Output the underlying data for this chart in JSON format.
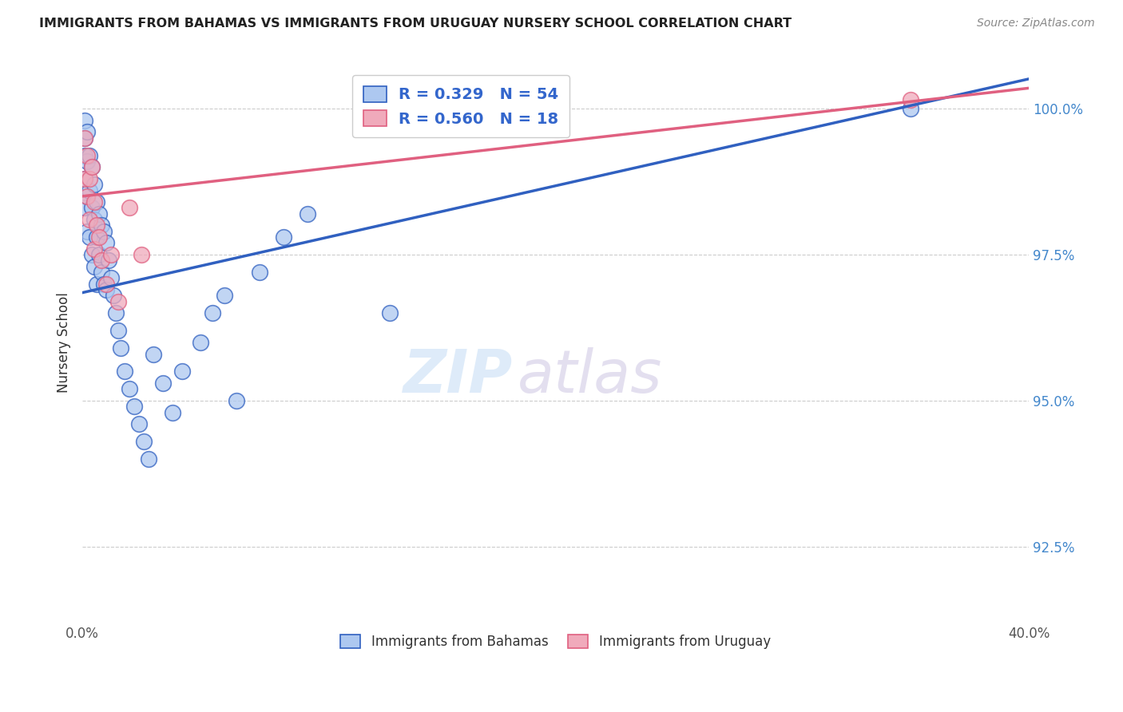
{
  "title": "IMMIGRANTS FROM BAHAMAS VS IMMIGRANTS FROM URUGUAY NURSERY SCHOOL CORRELATION CHART",
  "source": "Source: ZipAtlas.com",
  "ylabel": "Nursery School",
  "yticks": [
    92.5,
    95.0,
    97.5,
    100.0
  ],
  "ytick_labels": [
    "92.5%",
    "95.0%",
    "97.5%",
    "100.0%"
  ],
  "xmin": 0.0,
  "xmax": 0.4,
  "ymin": 91.2,
  "ymax": 100.8,
  "legend1_label": "R = 0.329   N = 54",
  "legend2_label": "R = 0.560   N = 18",
  "legend1_color": "#adc8f0",
  "legend2_color": "#f0aabb",
  "line1_color": "#3060c0",
  "line2_color": "#e06080",
  "watermark_zip": "ZIP",
  "watermark_atlas": "atlas",
  "blue_line_x0": 0.0,
  "blue_line_y0": 96.85,
  "blue_line_x1": 0.35,
  "blue_line_y1": 100.05,
  "pink_line_x0": 0.0,
  "pink_line_y0": 98.5,
  "pink_line_x1": 0.4,
  "pink_line_y1": 100.35,
  "bahamas_x": [
    0.001,
    0.001,
    0.001,
    0.001,
    0.001,
    0.002,
    0.002,
    0.002,
    0.002,
    0.003,
    0.003,
    0.003,
    0.004,
    0.004,
    0.004,
    0.005,
    0.005,
    0.005,
    0.006,
    0.006,
    0.006,
    0.007,
    0.007,
    0.008,
    0.008,
    0.009,
    0.009,
    0.01,
    0.01,
    0.011,
    0.012,
    0.013,
    0.014,
    0.015,
    0.016,
    0.018,
    0.02,
    0.022,
    0.024,
    0.026,
    0.028,
    0.03,
    0.034,
    0.038,
    0.042,
    0.05,
    0.055,
    0.06,
    0.065,
    0.075,
    0.085,
    0.095,
    0.13,
    0.35
  ],
  "bahamas_y": [
    99.8,
    99.5,
    99.2,
    98.8,
    98.3,
    99.6,
    99.1,
    98.5,
    97.9,
    99.2,
    98.6,
    97.8,
    99.0,
    98.3,
    97.5,
    98.7,
    98.1,
    97.3,
    98.4,
    97.8,
    97.0,
    98.2,
    97.5,
    98.0,
    97.2,
    97.9,
    97.0,
    97.7,
    96.9,
    97.4,
    97.1,
    96.8,
    96.5,
    96.2,
    95.9,
    95.5,
    95.2,
    94.9,
    94.6,
    94.3,
    94.0,
    95.8,
    95.3,
    94.8,
    95.5,
    96.0,
    96.5,
    96.8,
    95.0,
    97.2,
    97.8,
    98.2,
    96.5,
    100.0
  ],
  "uruguay_x": [
    0.001,
    0.001,
    0.002,
    0.002,
    0.003,
    0.003,
    0.004,
    0.005,
    0.005,
    0.006,
    0.007,
    0.008,
    0.01,
    0.012,
    0.015,
    0.02,
    0.025,
    0.35
  ],
  "uruguay_y": [
    99.5,
    98.8,
    99.2,
    98.5,
    98.8,
    98.1,
    99.0,
    98.4,
    97.6,
    98.0,
    97.8,
    97.4,
    97.0,
    97.5,
    96.7,
    98.3,
    97.5,
    100.15
  ]
}
